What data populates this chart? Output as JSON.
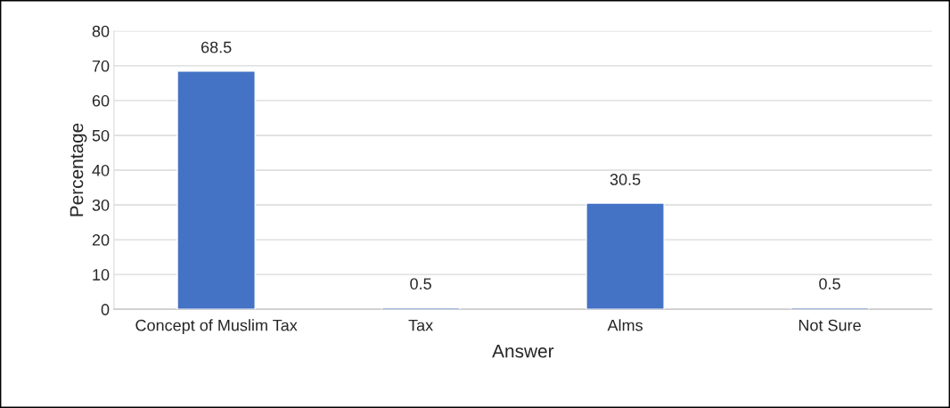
{
  "chart_data": {
    "type": "bar",
    "xlabel": "Answer",
    "ylabel": "Percentage",
    "categories": [
      "Concept of Muslim Tax",
      "Tax",
      "Alms",
      "Not Sure"
    ],
    "values": [
      68.5,
      0.5,
      30.5,
      0.5
    ],
    "color": "#4472c4",
    "ylim": [
      0,
      80
    ],
    "yticks": [
      0,
      10,
      20,
      30,
      40,
      50,
      60,
      70,
      80
    ],
    "grid": "y",
    "legend": false,
    "data_labels": true
  }
}
